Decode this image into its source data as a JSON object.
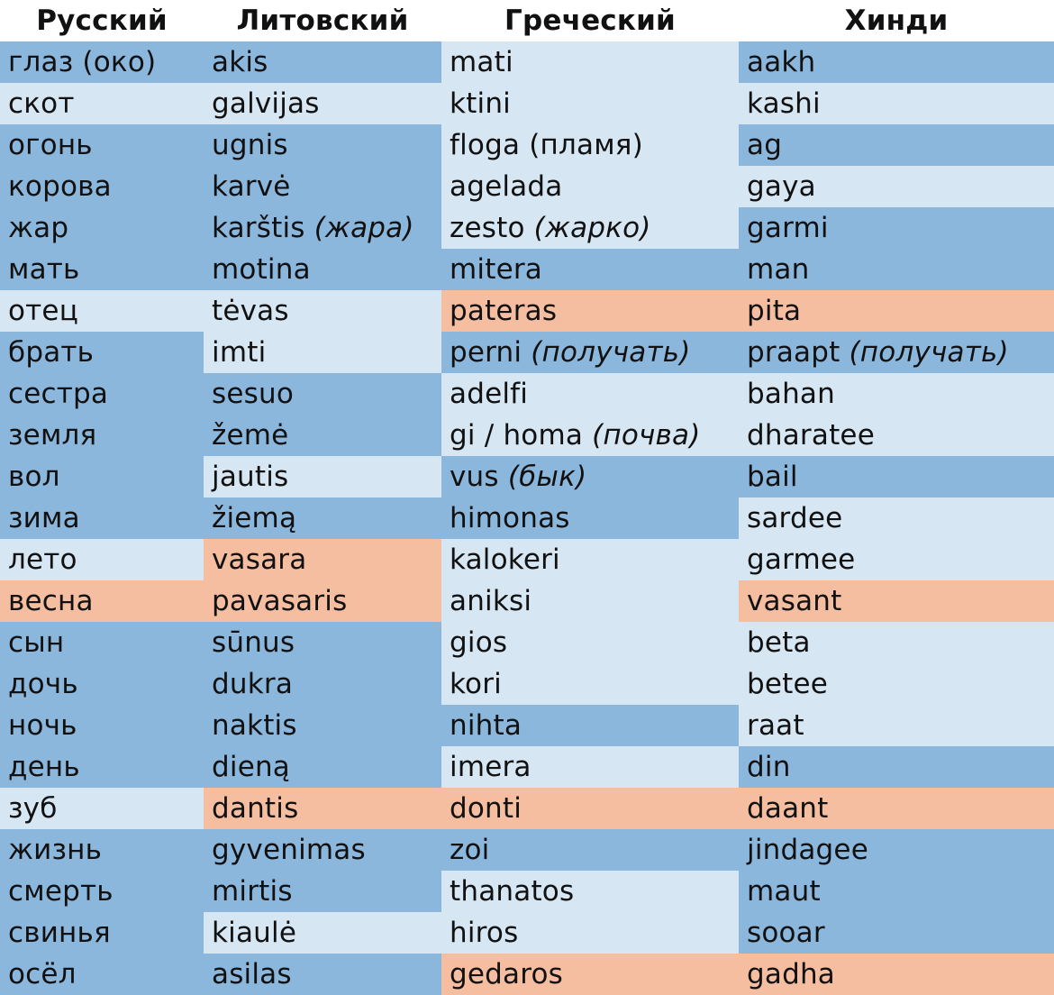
{
  "colors": {
    "dark_blue": "#8cb7dd",
    "light_blue": "#d6e6f3",
    "orange": "#f6bea0"
  },
  "headers": [
    "Русский",
    "Литовский",
    "Греческий",
    "Хинди"
  ],
  "rows": [
    {
      "cells": [
        {
          "text": "глаз (око)",
          "note": "",
          "bg": "dark"
        },
        {
          "text": "akis",
          "note": "",
          "bg": "dark"
        },
        {
          "text": "mati",
          "note": "",
          "bg": "light"
        },
        {
          "text": "aakh",
          "note": "",
          "bg": "dark"
        }
      ]
    },
    {
      "cells": [
        {
          "text": "скот",
          "note": "",
          "bg": "light"
        },
        {
          "text": "galvijas",
          "note": "",
          "bg": "light"
        },
        {
          "text": "ktini",
          "note": "",
          "bg": "light"
        },
        {
          "text": "kashi",
          "note": "",
          "bg": "light"
        }
      ]
    },
    {
      "cells": [
        {
          "text": "огонь",
          "note": "",
          "bg": "dark"
        },
        {
          "text": "ugnis",
          "note": "",
          "bg": "dark"
        },
        {
          "text": "floga (пламя)",
          "note": "",
          "bg": "light"
        },
        {
          "text": "ag",
          "note": "",
          "bg": "dark"
        }
      ]
    },
    {
      "cells": [
        {
          "text": "корова",
          "note": "",
          "bg": "dark"
        },
        {
          "text": "karvė",
          "note": "",
          "bg": "dark"
        },
        {
          "text": "agelada",
          "note": "",
          "bg": "light"
        },
        {
          "text": "gaya",
          "note": "",
          "bg": "light"
        }
      ]
    },
    {
      "cells": [
        {
          "text": "жар",
          "note": "",
          "bg": "dark"
        },
        {
          "text": "karštis ",
          "note": "(жара)",
          "bg": "dark"
        },
        {
          "text": "zesto ",
          "note": "(жарко)",
          "bg": "light"
        },
        {
          "text": "garmi",
          "note": "",
          "bg": "dark"
        }
      ]
    },
    {
      "cells": [
        {
          "text": "мать",
          "note": "",
          "bg": "dark"
        },
        {
          "text": "motina",
          "note": "",
          "bg": "dark"
        },
        {
          "text": "mitera",
          "note": "",
          "bg": "dark"
        },
        {
          "text": "man",
          "note": "",
          "bg": "dark"
        }
      ]
    },
    {
      "cells": [
        {
          "text": "отец",
          "note": "",
          "bg": "light"
        },
        {
          "text": "tėvas",
          "note": "",
          "bg": "light"
        },
        {
          "text": "pateras",
          "note": "",
          "bg": "orange"
        },
        {
          "text": "pita",
          "note": "",
          "bg": "orange"
        }
      ]
    },
    {
      "cells": [
        {
          "text": "брать",
          "note": "",
          "bg": "dark"
        },
        {
          "text": "imti",
          "note": "",
          "bg": "light"
        },
        {
          "text": "perni ",
          "note": "(получать)",
          "bg": "dark"
        },
        {
          "text": "praapt ",
          "note": "(получать)",
          "bg": "dark"
        }
      ]
    },
    {
      "cells": [
        {
          "text": "сестра",
          "note": "",
          "bg": "dark"
        },
        {
          "text": "sesuo",
          "note": "",
          "bg": "dark"
        },
        {
          "text": "adelfi",
          "note": "",
          "bg": "light"
        },
        {
          "text": "bahan",
          "note": "",
          "bg": "light"
        }
      ]
    },
    {
      "cells": [
        {
          "text": "земля",
          "note": "",
          "bg": "dark"
        },
        {
          "text": "žemė",
          "note": "",
          "bg": "dark"
        },
        {
          "text": "gi / homa ",
          "note": "(почва)",
          "bg": "light"
        },
        {
          "text": "dharatee",
          "note": "",
          "bg": "light"
        }
      ]
    },
    {
      "cells": [
        {
          "text": "вол",
          "note": "",
          "bg": "dark"
        },
        {
          "text": "jautis",
          "note": "",
          "bg": "light"
        },
        {
          "text": "vus ",
          "note": "(бык)",
          "bg": "dark"
        },
        {
          "text": "bail",
          "note": "",
          "bg": "dark"
        }
      ]
    },
    {
      "cells": [
        {
          "text": "зима",
          "note": "",
          "bg": "dark"
        },
        {
          "text": "žiemą",
          "note": "",
          "bg": "dark"
        },
        {
          "text": "himonas",
          "note": "",
          "bg": "dark"
        },
        {
          "text": "sardee",
          "note": "",
          "bg": "light"
        }
      ]
    },
    {
      "cells": [
        {
          "text": "лето",
          "note": "",
          "bg": "light"
        },
        {
          "text": "vasara",
          "note": "",
          "bg": "orange"
        },
        {
          "text": "kalokeri",
          "note": "",
          "bg": "light"
        },
        {
          "text": "garmee",
          "note": "",
          "bg": "light"
        }
      ]
    },
    {
      "cells": [
        {
          "text": "весна",
          "note": "",
          "bg": "orange"
        },
        {
          "text": "pavasaris",
          "note": "",
          "bg": "orange"
        },
        {
          "text": "aniksi",
          "note": "",
          "bg": "light"
        },
        {
          "text": "vasant",
          "note": "",
          "bg": "orange"
        }
      ]
    },
    {
      "cells": [
        {
          "text": "сын",
          "note": "",
          "bg": "dark"
        },
        {
          "text": "sūnus",
          "note": "",
          "bg": "dark"
        },
        {
          "text": "gios",
          "note": "",
          "bg": "light"
        },
        {
          "text": "beta",
          "note": "",
          "bg": "light"
        }
      ]
    },
    {
      "cells": [
        {
          "text": "дочь",
          "note": "",
          "bg": "dark"
        },
        {
          "text": "dukra",
          "note": "",
          "bg": "dark"
        },
        {
          "text": "kori",
          "note": "",
          "bg": "light"
        },
        {
          "text": "betee",
          "note": "",
          "bg": "light"
        }
      ]
    },
    {
      "cells": [
        {
          "text": "ночь",
          "note": "",
          "bg": "dark"
        },
        {
          "text": "naktis",
          "note": "",
          "bg": "dark"
        },
        {
          "text": "nihta",
          "note": "",
          "bg": "dark"
        },
        {
          "text": "raat",
          "note": "",
          "bg": "light"
        }
      ]
    },
    {
      "cells": [
        {
          "text": "день",
          "note": "",
          "bg": "dark"
        },
        {
          "text": "dieną",
          "note": "",
          "bg": "dark"
        },
        {
          "text": "imera",
          "note": "",
          "bg": "light"
        },
        {
          "text": "din",
          "note": "",
          "bg": "dark"
        }
      ]
    },
    {
      "cells": [
        {
          "text": "зуб",
          "note": "",
          "bg": "light"
        },
        {
          "text": "dantis",
          "note": "",
          "bg": "orange"
        },
        {
          "text": "donti",
          "note": "",
          "bg": "orange"
        },
        {
          "text": "daant",
          "note": "",
          "bg": "orange"
        }
      ]
    },
    {
      "cells": [
        {
          "text": "жизнь",
          "note": "",
          "bg": "dark"
        },
        {
          "text": "gyvenimas",
          "note": "",
          "bg": "dark"
        },
        {
          "text": "zoi",
          "note": "",
          "bg": "dark"
        },
        {
          "text": "jindagee",
          "note": "",
          "bg": "dark"
        }
      ]
    },
    {
      "cells": [
        {
          "text": "смерть",
          "note": "",
          "bg": "dark"
        },
        {
          "text": "mirtis",
          "note": "",
          "bg": "dark"
        },
        {
          "text": "thanatos",
          "note": "",
          "bg": "light"
        },
        {
          "text": "maut",
          "note": "",
          "bg": "dark"
        }
      ]
    },
    {
      "cells": [
        {
          "text": "свинья",
          "note": "",
          "bg": "dark"
        },
        {
          "text": "kiaulė",
          "note": "",
          "bg": "light"
        },
        {
          "text": "hiros",
          "note": "",
          "bg": "light"
        },
        {
          "text": "sooar",
          "note": "",
          "bg": "dark"
        }
      ]
    },
    {
      "cells": [
        {
          "text": "осёл",
          "note": "",
          "bg": "dark"
        },
        {
          "text": "asilas",
          "note": "",
          "bg": "dark"
        },
        {
          "text": "gedaros",
          "note": "",
          "bg": "orange"
        },
        {
          "text": "gadha",
          "note": "",
          "bg": "orange"
        }
      ]
    }
  ]
}
